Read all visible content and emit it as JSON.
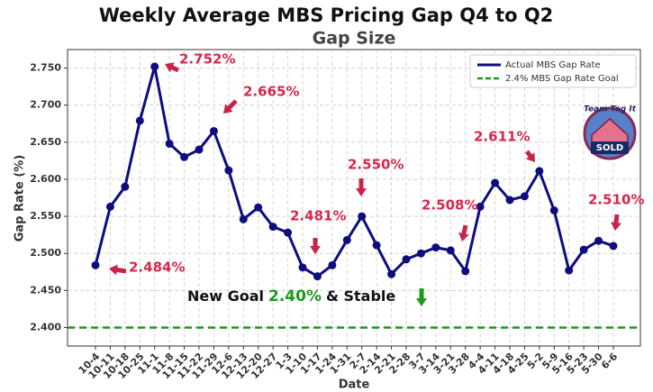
{
  "chart_data": {
    "type": "line",
    "title": "Weekly Average MBS Pricing Gap Q4 to Q2",
    "subtitle": "Gap Size",
    "x_label": "Date",
    "y_label": "Gap Rate (%)",
    "categories": [
      "10-4",
      "10-11",
      "10-18",
      "10-25",
      "11-1",
      "11-8",
      "11-15",
      "11-22",
      "11-29",
      "12-6",
      "12-13",
      "12-20",
      "12-27",
      "1-3",
      "1-10",
      "1-17",
      "1-24",
      "1-31",
      "2-7",
      "2-14",
      "2-21",
      "2-28",
      "3-7",
      "3-14",
      "3-21",
      "3-28",
      "4-4",
      "4-11",
      "4-18",
      "4-25",
      "5-2",
      "5-9",
      "5-16",
      "5-23",
      "5-30",
      "6-6"
    ],
    "series": [
      {
        "name": "Actual MBS Gap Rate",
        "color": "#0d0d80",
        "values": [
          2.484,
          2.563,
          2.59,
          2.679,
          2.752,
          2.648,
          2.63,
          2.64,
          2.665,
          2.612,
          2.546,
          2.562,
          2.536,
          2.528,
          2.481,
          2.469,
          2.484,
          2.518,
          2.55,
          2.511,
          2.472,
          2.492,
          2.5,
          2.508,
          2.504,
          2.476,
          2.563,
          2.595,
          2.572,
          2.577,
          2.611,
          2.558,
          2.477,
          2.505,
          2.517,
          2.51
        ]
      }
    ],
    "goal": {
      "name": "2.4% MBS Gap Rate Goal",
      "color": "#1a9a1a",
      "value": 2.4
    },
    "ylim": [
      2.375,
      2.775
    ],
    "yticks": [
      {
        "value": 2.4,
        "label": "2.400"
      },
      {
        "value": 2.45,
        "label": "2.450"
      },
      {
        "value": 2.5,
        "label": "2.500"
      },
      {
        "value": 2.55,
        "label": "2.550"
      },
      {
        "value": 2.6,
        "label": "2.600"
      },
      {
        "value": 2.65,
        "label": "2.650"
      },
      {
        "value": 2.7,
        "label": "2.700"
      },
      {
        "value": 2.75,
        "label": "2.750"
      }
    ],
    "grid": true,
    "legend": "upper right",
    "annotations": [
      "2.752%",
      "2.665%",
      "2.484%",
      "2.481%",
      "2.550%",
      "2.508%",
      "2.611%",
      "2.510%"
    ],
    "goal_note": [
      "New Goal",
      "2.40%",
      "& Stable"
    ],
    "logo": [
      "Team Tag It",
      "SOLD"
    ]
  }
}
